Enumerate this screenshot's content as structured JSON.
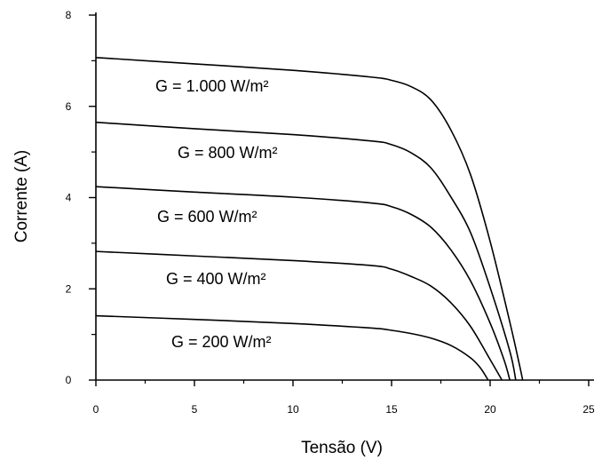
{
  "chart_data": {
    "type": "line",
    "title": "",
    "xlabel": "Tensão (V)",
    "ylabel": "Corrente (A)",
    "xlim": [
      0,
      25
    ],
    "ylim": [
      0,
      8
    ],
    "xticks": [
      0,
      5,
      10,
      15,
      20,
      25
    ],
    "yticks": [
      0,
      2,
      4,
      6,
      8
    ],
    "grid": false,
    "legend": "none",
    "line_color": "#000000",
    "series": [
      {
        "label": "G = 1.000 W/m²",
        "x": [
          0,
          5,
          10,
          14,
          15,
          16,
          17,
          18,
          19,
          20,
          21,
          21.5,
          21.65
        ],
        "y": [
          7.07,
          6.93,
          6.79,
          6.64,
          6.57,
          6.43,
          6.14,
          5.49,
          4.51,
          3.04,
          1.27,
          0.31,
          0
        ]
      },
      {
        "label": "G = 800 W/m²",
        "x": [
          0,
          5,
          10,
          14,
          15,
          16,
          17,
          18,
          19,
          20,
          21,
          21.3
        ],
        "y": [
          5.65,
          5.51,
          5.38,
          5.24,
          5.16,
          4.98,
          4.65,
          4.02,
          3.24,
          2.03,
          0.63,
          0
        ]
      },
      {
        "label": "G = 600 W/m²",
        "x": [
          0,
          5,
          10,
          14,
          15,
          16,
          17,
          18,
          19,
          20,
          20.7,
          21.0
        ],
        "y": [
          4.24,
          4.12,
          4.01,
          3.88,
          3.8,
          3.63,
          3.35,
          2.86,
          2.18,
          1.25,
          0.45,
          0
        ]
      },
      {
        "label": "G = 400 W/m²",
        "x": [
          0,
          5,
          10,
          14,
          15,
          16,
          17,
          18,
          19,
          20,
          20.6
        ],
        "y": [
          2.82,
          2.72,
          2.62,
          2.51,
          2.43,
          2.27,
          2.06,
          1.7,
          1.18,
          0.45,
          0
        ]
      },
      {
        "label": "G = 200 W/m²",
        "x": [
          0,
          5,
          10,
          14,
          15,
          16,
          17,
          18,
          19,
          19.5,
          19.9
        ],
        "y": [
          1.41,
          1.33,
          1.24,
          1.14,
          1.09,
          1.02,
          0.92,
          0.76,
          0.49,
          0.27,
          0
        ]
      }
    ]
  }
}
